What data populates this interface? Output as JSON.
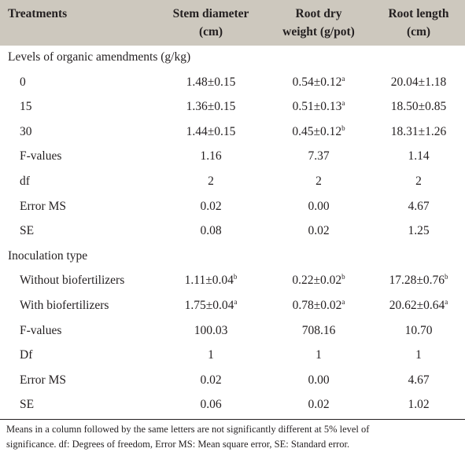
{
  "table": {
    "header": [
      [
        "Treatments"
      ],
      [
        "Stem diameter",
        "(cm)"
      ],
      [
        "Root dry",
        "weight (g/pot)"
      ],
      [
        "Root length",
        "(cm)"
      ]
    ],
    "sections": [
      {
        "title": "Levels of organic amendments (g/kg)",
        "rows": [
          [
            "0",
            "1.48±0.15",
            {
              "value": "0.54±0.12",
              "sup": "a"
            },
            "20.04±1.18"
          ],
          [
            "15",
            "1.36±0.15",
            {
              "value": "0.51±0.13",
              "sup": "a"
            },
            "18.50±0.85"
          ],
          [
            "30",
            "1.44±0.15",
            {
              "value": "0.45±0.12",
              "sup": "b"
            },
            "18.31±1.26"
          ],
          [
            "F-values",
            "1.16",
            "7.37",
            "1.14"
          ],
          [
            "df",
            "2",
            "2",
            "2"
          ],
          [
            "Error MS",
            "0.02",
            "0.00",
            "4.67"
          ],
          [
            "SE",
            "0.08",
            "0.02",
            "1.25"
          ]
        ]
      },
      {
        "title": "Inoculation type",
        "rows": [
          [
            "Without biofertilizers",
            {
              "value": "1.11±0.04",
              "sup": "b"
            },
            {
              "value": "0.22±0.02",
              "sup": "b"
            },
            {
              "value": "17.28±0.76",
              "sup": "b"
            }
          ],
          [
            "With biofertilizers",
            {
              "value": "1.75±0.04",
              "sup": "a"
            },
            {
              "value": "0.78±0.02",
              "sup": "a"
            },
            {
              "value": "20.62±0.64",
              "sup": "a"
            }
          ],
          [
            "F-values",
            "100.03",
            "708.16",
            "10.70"
          ],
          [
            "Df",
            "1",
            "1",
            "1"
          ],
          [
            "Error MS",
            "0.02",
            "0.00",
            "4.67"
          ],
          [
            "SE",
            "0.06",
            "0.02",
            "1.02"
          ]
        ]
      }
    ],
    "footnote": [
      "Means in a column followed by the same letters are not significantly different at 5% level of",
      "significance. df: Degrees of freedom, Error MS: Mean square error, SE: Standard error."
    ]
  }
}
